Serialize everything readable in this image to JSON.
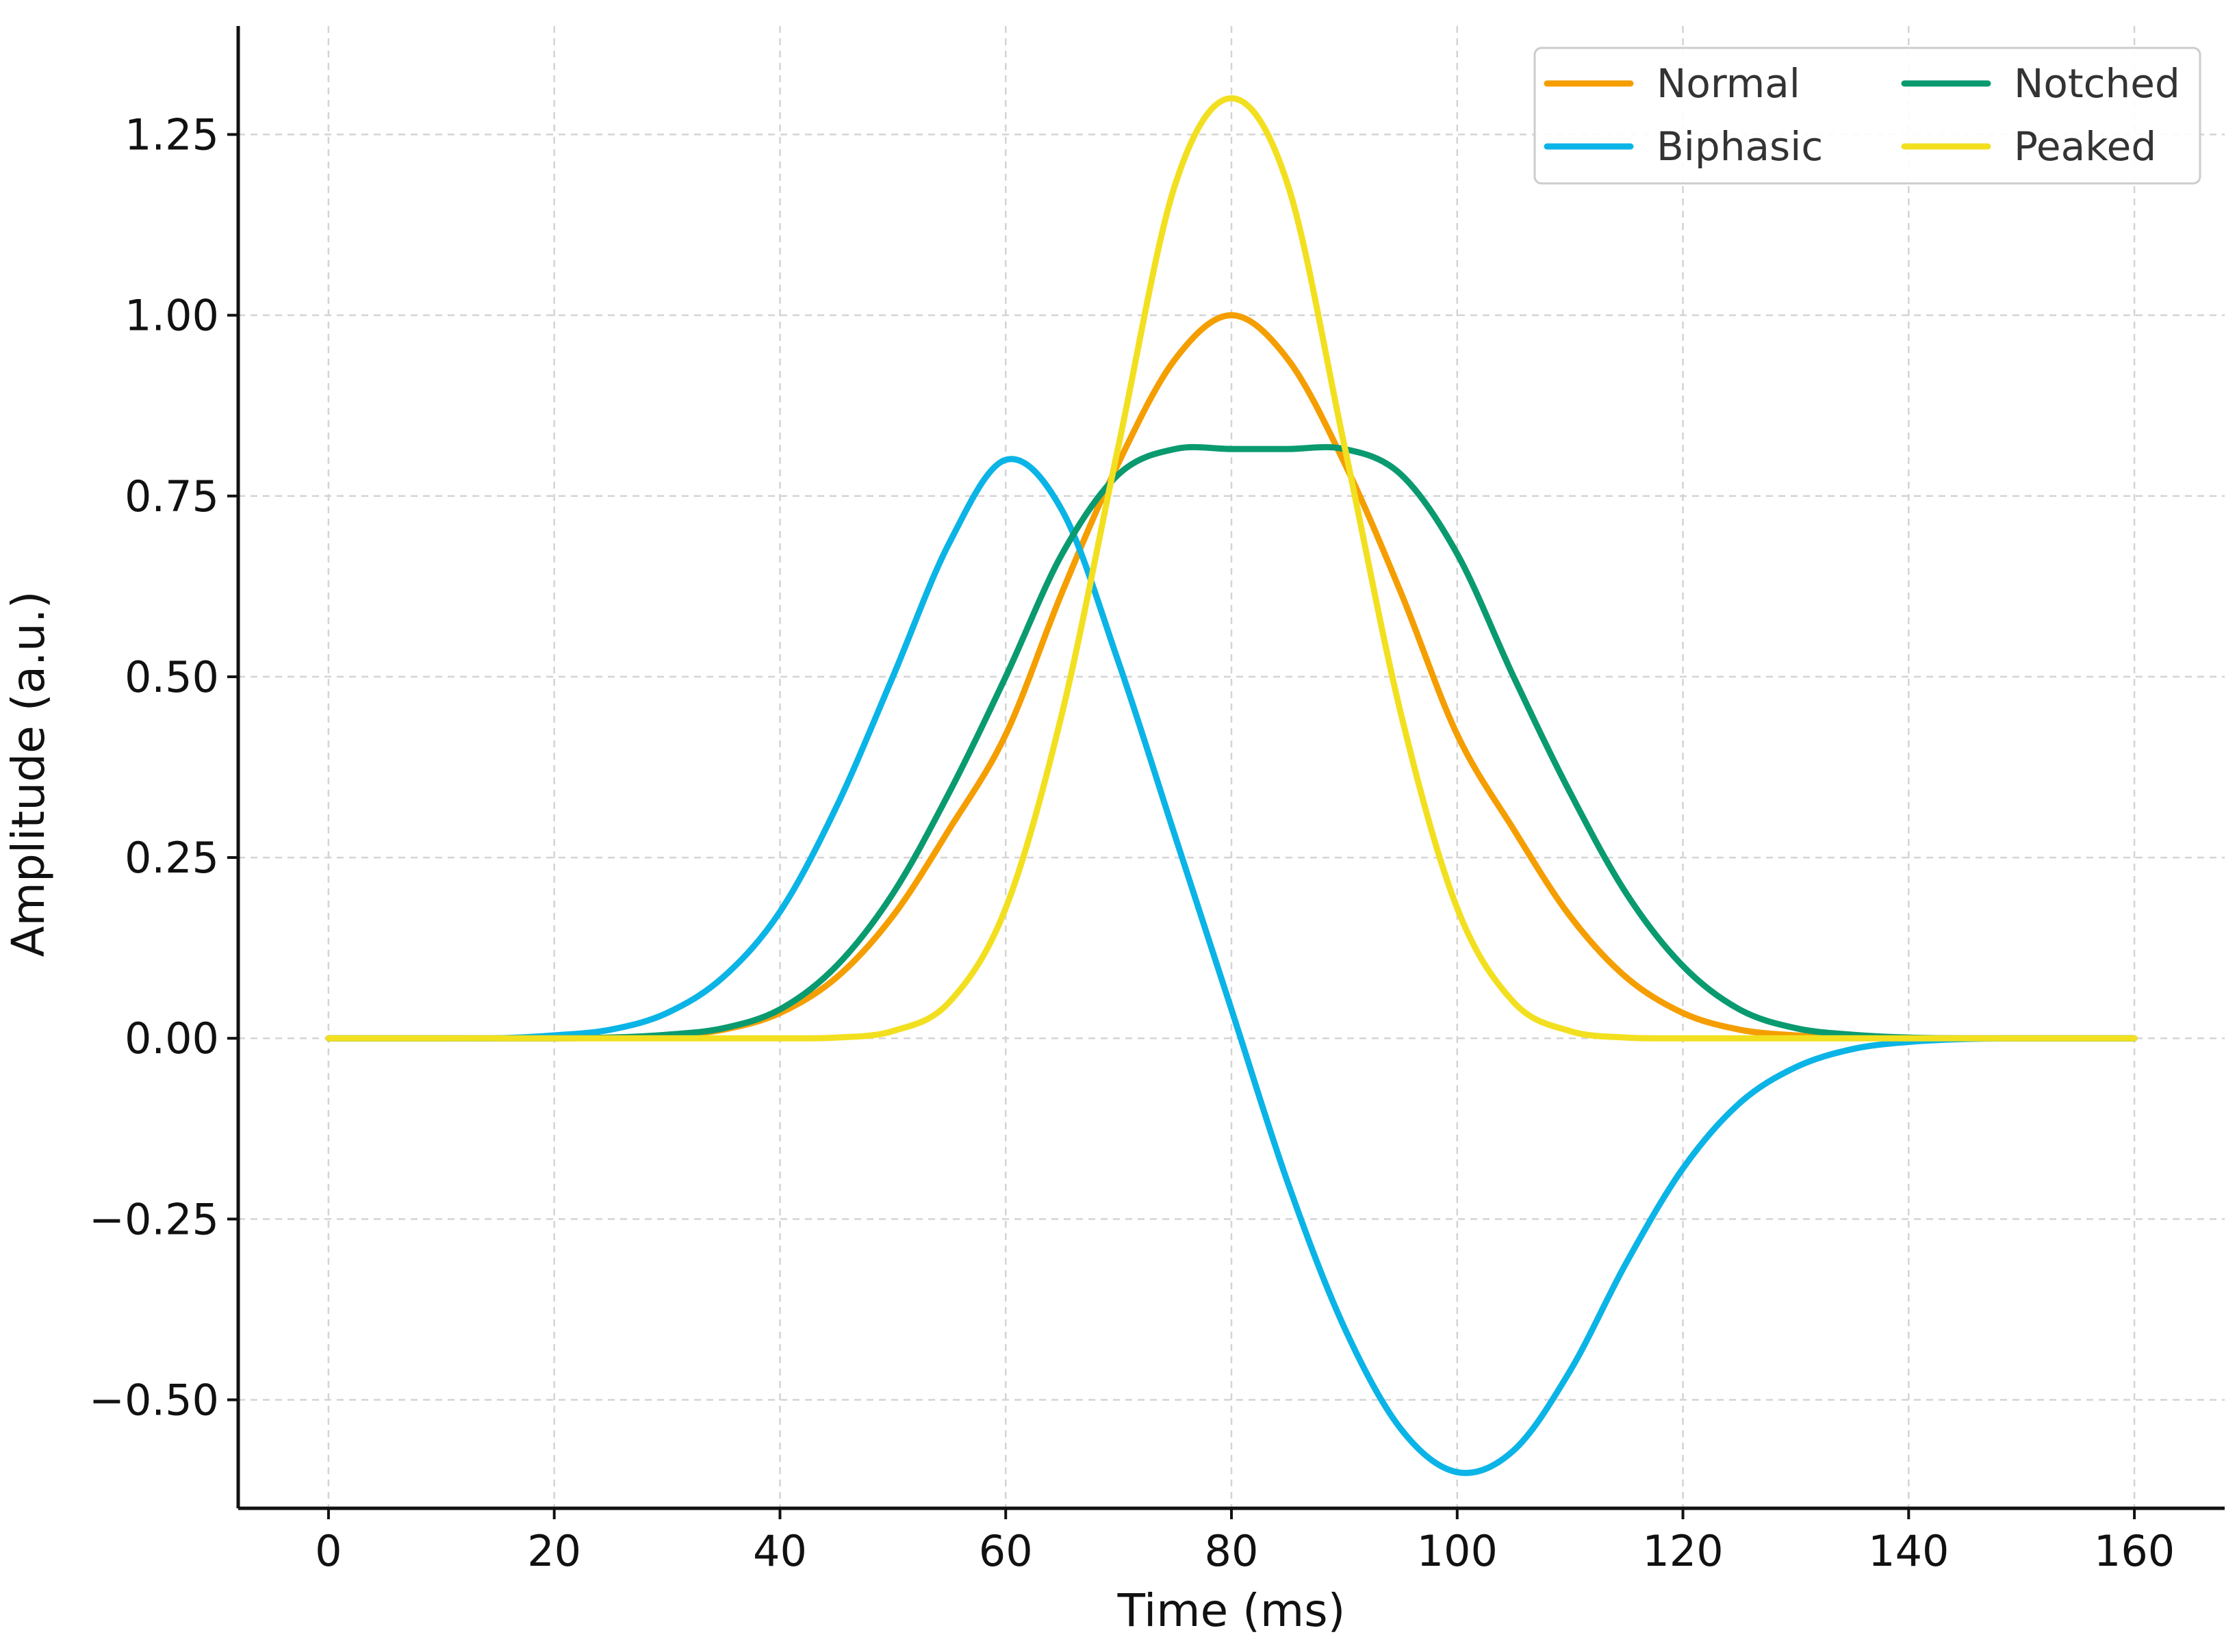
{
  "chart_data": {
    "type": "line",
    "title": "",
    "xlabel": "Time (ms)",
    "ylabel": "Amplitude (a.u.)",
    "xlim": [
      -8,
      168
    ],
    "ylim": [
      -0.65,
      1.4
    ],
    "xticks": [
      0,
      20,
      40,
      60,
      80,
      100,
      120,
      140,
      160
    ],
    "xtick_labels": [
      "0",
      "20",
      "40",
      "60",
      "80",
      "100",
      "120",
      "140",
      "160"
    ],
    "yticks": [
      -0.5,
      -0.25,
      0,
      0.25,
      0.5,
      0.75,
      1.0,
      1.25
    ],
    "ytick_labels": [
      "−0.50",
      "−0.25",
      "0.00",
      "0.25",
      "0.50",
      "0.75",
      "1.00",
      "1.25"
    ],
    "grid": true,
    "legend": {
      "position": "top-right",
      "columns": 2
    },
    "x": [
      0,
      5,
      10,
      15,
      20,
      25,
      30,
      35,
      40,
      45,
      50,
      55,
      60,
      65,
      70,
      75,
      80,
      85,
      90,
      95,
      100,
      105,
      110,
      115,
      120,
      125,
      130,
      135,
      140,
      145,
      150,
      155,
      160
    ],
    "series": [
      {
        "name": "Normal",
        "color": "#F59E00",
        "values": [
          0,
          0,
          0,
          0,
          0,
          0.001,
          0.004,
          0.012,
          0.035,
          0.084,
          0.169,
          0.289,
          0.42,
          0.617,
          0.796,
          0.939,
          1.0,
          0.939,
          0.796,
          0.617,
          0.42,
          0.289,
          0.169,
          0.084,
          0.035,
          0.012,
          0.004,
          0.001,
          0,
          0,
          0,
          0,
          0
        ]
      },
      {
        "name": "Biphasic",
        "color": "#0BB4E6",
        "values": [
          0,
          0,
          0,
          0,
          0.004,
          0.012,
          0.035,
          0.085,
          0.175,
          0.32,
          0.5,
          0.685,
          0.8,
          0.73,
          0.52,
          0.28,
          0.04,
          -0.2,
          -0.4,
          -0.54,
          -0.6,
          -0.57,
          -0.46,
          -0.31,
          -0.18,
          -0.09,
          -0.04,
          -0.015,
          -0.005,
          -0.001,
          0,
          0,
          0
        ]
      },
      {
        "name": "Notched",
        "color": "#0A9A70",
        "values": [
          0,
          0,
          0,
          0,
          0,
          0.001,
          0.005,
          0.014,
          0.04,
          0.1,
          0.2,
          0.34,
          0.5,
          0.67,
          0.78,
          0.815,
          0.815,
          0.815,
          0.815,
          0.78,
          0.67,
          0.5,
          0.34,
          0.2,
          0.1,
          0.04,
          0.014,
          0.005,
          0.001,
          0,
          0,
          0,
          0
        ]
      },
      {
        "name": "Peaked",
        "color": "#F2E020",
        "values": [
          0,
          0,
          0,
          0,
          0,
          0,
          0,
          0,
          0,
          0.001,
          0.01,
          0.05,
          0.18,
          0.45,
          0.82,
          1.18,
          1.3,
          1.18,
          0.82,
          0.45,
          0.18,
          0.05,
          0.01,
          0.001,
          0,
          0,
          0,
          0,
          0,
          0,
          0,
          0,
          0
        ]
      }
    ]
  }
}
